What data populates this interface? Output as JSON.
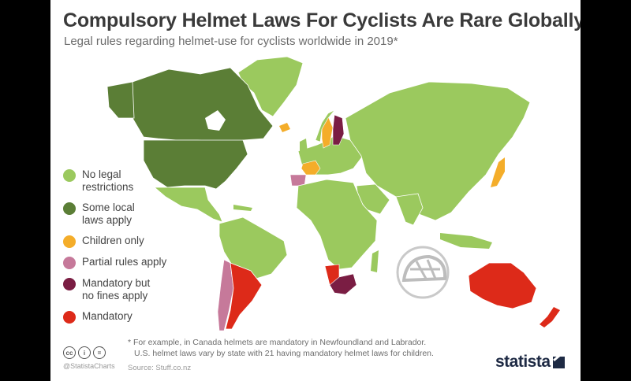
{
  "title": "Compulsory Helmet Laws For Cyclists Are Rare Globally",
  "subtitle": "Legal rules regarding helmet-use for cyclists worldwide in 2019*",
  "colors": {
    "no_legal": "#9bc95e",
    "some_local": "#5b7e36",
    "children_only": "#f4ad2a",
    "partial": "#c6799a",
    "mandatory_no_fines": "#7a1d43",
    "mandatory": "#dd2a19"
  },
  "legend": [
    {
      "label": "No legal\nrestrictions",
      "color": "#9bc95e"
    },
    {
      "label": "Some local\nlaws apply",
      "color": "#5b7e36"
    },
    {
      "label": "Children only",
      "color": "#f4ad2a"
    },
    {
      "label": "Partial rules apply",
      "color": "#c6799a"
    },
    {
      "label": "Mandatory but\nno fines apply",
      "color": "#7a1d43"
    },
    {
      "label": "Mandatory",
      "color": "#dd2a19"
    }
  ],
  "footnote": {
    "line1": "* For example, in Canada helmets are mandatory in Newfoundland and Labrador.",
    "line2": "U.S. helmet laws vary by state with 21 having mandatory helmet laws for children."
  },
  "license_icons": [
    "cc",
    "i",
    "="
  ],
  "handle": "@StatistaCharts",
  "source": "Source: Stuff.co.nz",
  "brand": "statista",
  "countries": [
    {
      "name": "Canada",
      "category": "some_local"
    },
    {
      "name": "United States",
      "category": "some_local"
    },
    {
      "name": "Argentina",
      "category": "mandatory"
    },
    {
      "name": "Chile",
      "category": "partial"
    },
    {
      "name": "Finland",
      "category": "mandatory_no_fines"
    },
    {
      "name": "Sweden",
      "category": "children_only"
    },
    {
      "name": "Iceland",
      "category": "children_only"
    },
    {
      "name": "France",
      "category": "children_only"
    },
    {
      "name": "Spain",
      "category": "partial"
    },
    {
      "name": "Japan",
      "category": "children_only"
    },
    {
      "name": "South Africa",
      "category": "mandatory_no_fines"
    },
    {
      "name": "Namibia",
      "category": "mandatory"
    },
    {
      "name": "Australia",
      "category": "mandatory"
    },
    {
      "name": "New Zealand",
      "category": "mandatory"
    }
  ]
}
